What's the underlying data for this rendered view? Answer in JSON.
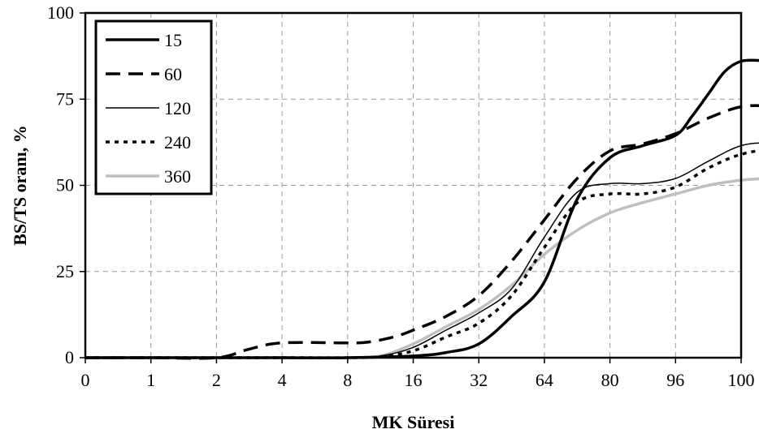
{
  "chart_data": {
    "type": "line",
    "title": "",
    "xlabel": "MK Süresi",
    "ylabel": "BS/TS oranı, %",
    "categories": [
      "0",
      "1",
      "2",
      "4",
      "8",
      "16",
      "32",
      "64",
      "80",
      "96",
      "100"
    ],
    "yticks": [
      0,
      25,
      50,
      75,
      100
    ],
    "ylim": [
      0,
      100
    ],
    "grid": true,
    "legend_position": "top-left",
    "series": [
      {
        "name": "15",
        "style": "solid-thick",
        "color": "#000000",
        "points": [
          [
            0,
            0
          ],
          [
            1,
            0
          ],
          [
            2,
            0
          ],
          [
            3,
            0
          ],
          [
            4,
            0
          ],
          [
            5,
            0.5
          ],
          [
            5.5,
            1.5
          ],
          [
            6,
            4
          ],
          [
            6.5,
            12
          ],
          [
            7,
            22
          ],
          [
            7.5,
            46
          ],
          [
            8,
            58
          ],
          [
            8.5,
            61.5
          ],
          [
            9,
            64.5
          ],
          [
            9.25,
            70
          ],
          [
            9.5,
            76.5
          ],
          [
            9.75,
            83
          ],
          [
            10,
            86
          ],
          [
            10.3,
            86.2
          ],
          [
            10.5,
            86
          ],
          [
            11,
            86
          ]
        ]
      },
      {
        "name": "60",
        "style": "dashed-thick",
        "color": "#000000",
        "points": [
          [
            0,
            0
          ],
          [
            1,
            0
          ],
          [
            2,
            0
          ],
          [
            2.5,
            2.5
          ],
          [
            3,
            4.3
          ],
          [
            4,
            4.3
          ],
          [
            4.3,
            4.5
          ],
          [
            4.7,
            6
          ],
          [
            5,
            8
          ],
          [
            5.5,
            12
          ],
          [
            6,
            18
          ],
          [
            6.5,
            28
          ],
          [
            7,
            40
          ],
          [
            7.5,
            52
          ],
          [
            8,
            60
          ],
          [
            8.5,
            62
          ],
          [
            9,
            65
          ],
          [
            9.5,
            69.5
          ],
          [
            10,
            72.8
          ],
          [
            10.5,
            73
          ],
          [
            11,
            72.5
          ]
        ]
      },
      {
        "name": "120",
        "style": "solid-thin",
        "color": "#000000",
        "points": [
          [
            0,
            0
          ],
          [
            1,
            0
          ],
          [
            2,
            0
          ],
          [
            3,
            0.2
          ],
          [
            4,
            0
          ],
          [
            4.5,
            0.5
          ],
          [
            5,
            3
          ],
          [
            5.5,
            8
          ],
          [
            6,
            13
          ],
          [
            6.5,
            20
          ],
          [
            7,
            35
          ],
          [
            7.5,
            48
          ],
          [
            8,
            50.5
          ],
          [
            8.5,
            50.5
          ],
          [
            9,
            52
          ],
          [
            9.5,
            57
          ],
          [
            10,
            61.5
          ],
          [
            10.5,
            62.5
          ],
          [
            11,
            62.5
          ]
        ]
      },
      {
        "name": "240",
        "style": "dotted-thick",
        "color": "#000000",
        "points": [
          [
            0,
            0
          ],
          [
            1,
            0
          ],
          [
            2,
            0
          ],
          [
            3,
            0
          ],
          [
            4,
            0
          ],
          [
            4.5,
            0.3
          ],
          [
            5,
            2
          ],
          [
            5.5,
            6
          ],
          [
            6,
            10
          ],
          [
            6.5,
            18
          ],
          [
            7,
            32
          ],
          [
            7.5,
            45
          ],
          [
            8,
            47.5
          ],
          [
            8.5,
            47.5
          ],
          [
            9,
            49.5
          ],
          [
            9.5,
            55
          ],
          [
            10,
            59
          ],
          [
            10.5,
            60.5
          ],
          [
            11,
            60.5
          ]
        ]
      },
      {
        "name": "360",
        "style": "solid-gray",
        "color": "#bfbfbf",
        "points": [
          [
            0,
            0
          ],
          [
            1,
            0
          ],
          [
            2,
            0
          ],
          [
            3,
            0
          ],
          [
            4,
            0
          ],
          [
            4.5,
            0.5
          ],
          [
            5,
            4
          ],
          [
            5.5,
            9
          ],
          [
            6,
            14
          ],
          [
            6.5,
            21
          ],
          [
            7,
            30
          ],
          [
            7.5,
            37
          ],
          [
            8,
            42
          ],
          [
            8.5,
            45
          ],
          [
            9,
            47.5
          ],
          [
            9.5,
            50
          ],
          [
            10,
            51.5
          ],
          [
            10.5,
            52
          ],
          [
            11,
            51.5
          ]
        ]
      }
    ]
  }
}
